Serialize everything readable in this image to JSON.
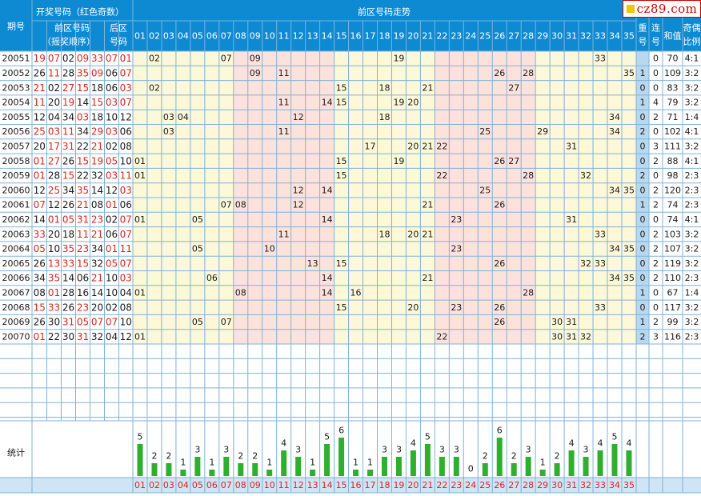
{
  "logo": {
    "text": "cz89.com"
  },
  "header": {
    "period": "期号",
    "draw_group": "开奖号码（红色奇数）",
    "front_zone": "前区号码",
    "shake_order": "（摇奖顺序）",
    "back_zone_l1": "后区",
    "back_zone_l2": "号码",
    "trend_title": "前区号码走势",
    "repeat_l1": "重",
    "repeat_l2": "号",
    "consec_l1": "连",
    "consec_l2": "号",
    "sum": "和值",
    "odd_even_l1": "奇偶",
    "odd_even_l2": "比例"
  },
  "numbers": [
    "01",
    "02",
    "03",
    "04",
    "05",
    "06",
    "07",
    "08",
    "09",
    "10",
    "11",
    "12",
    "13",
    "14",
    "15",
    "16",
    "17",
    "18",
    "19",
    "20",
    "21",
    "22",
    "23",
    "24",
    "25",
    "26",
    "27",
    "28",
    "29",
    "30",
    "31",
    "32",
    "33",
    "34",
    "35"
  ],
  "rows": [
    {
      "period": "20051",
      "front": [
        "19",
        "07",
        "02",
        "09",
        "33"
      ],
      "back": [
        "07",
        "01"
      ],
      "repeat": "",
      "consec": "0",
      "sum": "70",
      "ratio": "4:1"
    },
    {
      "period": "20052",
      "front": [
        "26",
        "11",
        "28",
        "35",
        "09"
      ],
      "back": [
        "06",
        "07"
      ],
      "repeat": "1",
      "consec": "0",
      "sum": "109",
      "ratio": "3:2"
    },
    {
      "period": "20053",
      "front": [
        "21",
        "02",
        "27",
        "15",
        "18"
      ],
      "back": [
        "06",
        "03"
      ],
      "repeat": "0",
      "consec": "0",
      "sum": "83",
      "ratio": "3:2"
    },
    {
      "period": "20054",
      "front": [
        "11",
        "20",
        "19",
        "14",
        "15"
      ],
      "back": [
        "03",
        "07"
      ],
      "repeat": "1",
      "consec": "4",
      "sum": "79",
      "ratio": "3:2"
    },
    {
      "period": "20055",
      "front": [
        "12",
        "04",
        "34",
        "03",
        "18"
      ],
      "back": [
        "10",
        "12"
      ],
      "repeat": "0",
      "consec": "2",
      "sum": "71",
      "ratio": "1:4"
    },
    {
      "period": "20056",
      "front": [
        "25",
        "03",
        "11",
        "34",
        "29"
      ],
      "back": [
        "03",
        "06"
      ],
      "repeat": "2",
      "consec": "0",
      "sum": "102",
      "ratio": "4:1"
    },
    {
      "period": "20057",
      "front": [
        "20",
        "17",
        "31",
        "22",
        "21"
      ],
      "back": [
        "02",
        "08"
      ],
      "repeat": "0",
      "consec": "3",
      "sum": "111",
      "ratio": "3:2"
    },
    {
      "period": "20058",
      "front": [
        "01",
        "27",
        "26",
        "15",
        "19"
      ],
      "back": [
        "05",
        "10"
      ],
      "repeat": "0",
      "consec": "2",
      "sum": "88",
      "ratio": "4:1"
    },
    {
      "period": "20059",
      "front": [
        "01",
        "28",
        "15",
        "22",
        "32"
      ],
      "back": [
        "03",
        "11"
      ],
      "repeat": "2",
      "consec": "0",
      "sum": "98",
      "ratio": "2:3"
    },
    {
      "period": "20060",
      "front": [
        "12",
        "25",
        "34",
        "35",
        "14"
      ],
      "back": [
        "12",
        "03"
      ],
      "repeat": "0",
      "consec": "2",
      "sum": "120",
      "ratio": "2:3"
    },
    {
      "period": "20061",
      "front": [
        "07",
        "12",
        "26",
        "21",
        "08"
      ],
      "back": [
        "01",
        "06"
      ],
      "repeat": "1",
      "consec": "2",
      "sum": "74",
      "ratio": "2:3"
    },
    {
      "period": "20062",
      "front": [
        "14",
        "01",
        "05",
        "31",
        "23"
      ],
      "back": [
        "02",
        "07"
      ],
      "repeat": "0",
      "consec": "0",
      "sum": "74",
      "ratio": "4:1"
    },
    {
      "period": "20063",
      "front": [
        "33",
        "20",
        "18",
        "11",
        "21"
      ],
      "back": [
        "06",
        "07"
      ],
      "repeat": "0",
      "consec": "2",
      "sum": "103",
      "ratio": "3:2"
    },
    {
      "period": "20064",
      "front": [
        "05",
        "10",
        "35",
        "23",
        "34"
      ],
      "back": [
        "01",
        "11"
      ],
      "repeat": "0",
      "consec": "2",
      "sum": "107",
      "ratio": "3:2"
    },
    {
      "period": "20065",
      "front": [
        "26",
        "13",
        "33",
        "15",
        "32"
      ],
      "back": [
        "05",
        "07"
      ],
      "repeat": "0",
      "consec": "2",
      "sum": "119",
      "ratio": "3:2"
    },
    {
      "period": "20066",
      "front": [
        "34",
        "35",
        "14",
        "06",
        "21"
      ],
      "back": [
        "10",
        "03"
      ],
      "repeat": "0",
      "consec": "2",
      "sum": "110",
      "ratio": "2:3"
    },
    {
      "period": "20067",
      "front": [
        "08",
        "01",
        "28",
        "16",
        "14"
      ],
      "back": [
        "10",
        "04"
      ],
      "repeat": "1",
      "consec": "0",
      "sum": "67",
      "ratio": "1:4"
    },
    {
      "period": "20068",
      "front": [
        "15",
        "33",
        "26",
        "23",
        "20"
      ],
      "back": [
        "02",
        "08"
      ],
      "repeat": "0",
      "consec": "0",
      "sum": "117",
      "ratio": "3:2"
    },
    {
      "period": "20069",
      "front": [
        "26",
        "30",
        "31",
        "05",
        "07"
      ],
      "back": [
        "07",
        "10"
      ],
      "repeat": "1",
      "consec": "2",
      "sum": "99",
      "ratio": "3:2"
    },
    {
      "period": "20070",
      "front": [
        "01",
        "22",
        "30",
        "31",
        "32"
      ],
      "back": [
        "04",
        "12"
      ],
      "repeat": "2",
      "consec": "3",
      "sum": "116",
      "ratio": "2:3"
    }
  ],
  "stats": {
    "label": "统计",
    "counts": [
      5,
      2,
      2,
      1,
      3,
      1,
      3,
      2,
      2,
      1,
      4,
      3,
      1,
      5,
      6,
      1,
      1,
      3,
      3,
      4,
      5,
      3,
      3,
      0,
      2,
      6,
      2,
      3,
      1,
      2,
      4,
      3,
      4,
      5,
      4
    ]
  },
  "colors": {
    "header_bg": "#0e8ad3",
    "header_text": "#ffffff",
    "odd_number": "#d9261c",
    "even_number": "#1a1a1a",
    "trend_cell": "#fcf8d8",
    "trend_pink": "#fde2dc",
    "stat_blue": "#cfe4f4",
    "summary_col": "#b8d8f0",
    "grid_line": "#7fb2da",
    "bar_green": "#2fae2f"
  }
}
